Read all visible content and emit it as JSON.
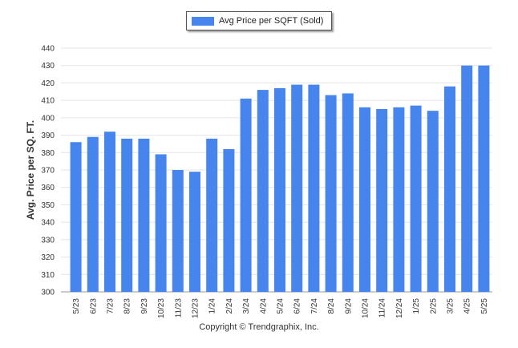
{
  "legend": {
    "label": "Avg Price per SQFT (Sold)"
  },
  "copyright": "Copyright © Trendgraphix, Inc.",
  "chart_data": {
    "type": "bar",
    "title": "",
    "xlabel": "",
    "ylabel": "Avg. Price per SQ. FT.",
    "ylim": [
      300,
      440
    ],
    "yticks": [
      300,
      310,
      320,
      330,
      340,
      350,
      360,
      370,
      380,
      390,
      400,
      410,
      420,
      430,
      440
    ],
    "grid": true,
    "legend_position": "top-center",
    "bar_color": "#4684ee",
    "categories": [
      "5/23",
      "6/23",
      "7/23",
      "8/23",
      "9/23",
      "10/23",
      "11/23",
      "12/23",
      "1/24",
      "2/24",
      "3/24",
      "4/24",
      "5/24",
      "6/24",
      "7/24",
      "8/24",
      "9/24",
      "10/24",
      "11/24",
      "12/24",
      "1/25",
      "2/25",
      "3/25",
      "4/25",
      "5/25"
    ],
    "series": [
      {
        "name": "Avg Price per SQFT (Sold)",
        "values": [
          386,
          389,
          392,
          388,
          388,
          379,
          370,
          369,
          388,
          382,
          411,
          416,
          417,
          419,
          419,
          413,
          414,
          406,
          405,
          406,
          407,
          404,
          418,
          430,
          430
        ]
      }
    ]
  }
}
